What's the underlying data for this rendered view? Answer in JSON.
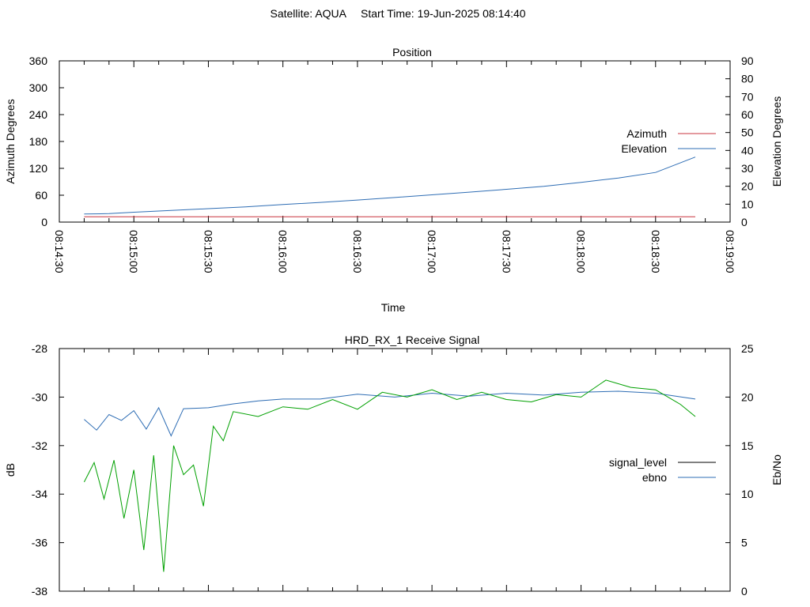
{
  "page": {
    "satellite": "Satellite: AQUA",
    "start_time": "Start Time: 19-Jun-2025 08:14:40"
  },
  "colors": {
    "azimuth": "#c8343f",
    "elevation": "#2e6db4",
    "signal_level": "#000000",
    "ebno": "#2e6db4",
    "signal_trace": "#00a000",
    "axis": "#000000"
  },
  "chart_data": [
    {
      "type": "line",
      "title": "Position",
      "xlabel": "Time",
      "ylabel": "Azimuth Degrees",
      "y2label": "Elevation Degrees",
      "xlim": [
        "08:14:30",
        "08:19:00"
      ],
      "ylim": [
        0,
        360
      ],
      "y2lim": [
        0,
        90
      ],
      "xticks": [
        "08:14:30",
        "08:15:00",
        "08:15:30",
        "08:16:00",
        "08:16:30",
        "08:17:00",
        "08:17:30",
        "08:18:00",
        "08:18:30",
        "08:19:00"
      ],
      "yticks": [
        "0",
        "60",
        "120",
        "180",
        "240",
        "300",
        "360"
      ],
      "y2ticks": [
        "0",
        "10",
        "20",
        "30",
        "40",
        "50",
        "60",
        "70",
        "80",
        "90"
      ],
      "legend_position": "right",
      "series": [
        {
          "name": "Azimuth",
          "axis": "y",
          "x": [
            "08:14:40",
            "08:15:00",
            "08:15:30",
            "08:16:00",
            "08:16:30",
            "08:17:00",
            "08:17:30",
            "08:18:00",
            "08:18:30",
            "08:18:46"
          ],
          "values": [
            12,
            12,
            12,
            12,
            12,
            12,
            12,
            12,
            12,
            12
          ]
        },
        {
          "name": "Elevation",
          "axis": "y2",
          "x": [
            "08:14:40",
            "08:14:50",
            "08:15:00",
            "08:15:15",
            "08:15:30",
            "08:15:45",
            "08:16:00",
            "08:16:15",
            "08:16:30",
            "08:16:45",
            "08:17:00",
            "08:17:15",
            "08:17:30",
            "08:17:45",
            "08:18:00",
            "08:18:15",
            "08:18:30",
            "08:18:46"
          ],
          "values": [
            4.5,
            4.7,
            5.5,
            6.5,
            7.5,
            8.5,
            9.8,
            11.0,
            12.3,
            13.7,
            15.2,
            16.7,
            18.3,
            20.0,
            22.2,
            24.6,
            27.7,
            36.3
          ]
        }
      ]
    },
    {
      "type": "line",
      "title": "HRD_RX_1 Receive Signal",
      "xlabel": "",
      "ylabel": "dB",
      "y2label": "Eb/No",
      "xlim": [
        "08:14:30",
        "08:19:00"
      ],
      "ylim": [
        -38,
        -28
      ],
      "y2lim": [
        0,
        25
      ],
      "yticks": [
        "-38",
        "-36",
        "-34",
        "-32",
        "-30",
        "-28"
      ],
      "y2ticks": [
        "0",
        "5",
        "10",
        "15",
        "20",
        "25"
      ],
      "legend_position": "right",
      "legend": [
        "signal_level",
        "ebno"
      ],
      "series": [
        {
          "name": "ebno",
          "axis": "y2",
          "x": [
            "08:14:40",
            "08:14:45",
            "08:14:50",
            "08:14:55",
            "08:15:00",
            "08:15:05",
            "08:15:10",
            "08:15:15",
            "08:15:20",
            "08:15:30",
            "08:15:40",
            "08:15:50",
            "08:16:00",
            "08:16:15",
            "08:16:30",
            "08:16:45",
            "08:17:00",
            "08:17:15",
            "08:17:30",
            "08:17:45",
            "08:18:00",
            "08:18:15",
            "08:18:30",
            "08:18:46"
          ],
          "values": [
            17.7,
            16.6,
            18.2,
            17.6,
            18.6,
            16.7,
            18.9,
            16.0,
            18.8,
            18.9,
            19.3,
            19.6,
            19.8,
            19.8,
            20.3,
            20.0,
            20.4,
            20.1,
            20.4,
            20.2,
            20.5,
            20.6,
            20.4,
            19.8
          ]
        },
        {
          "name": "",
          "axis": "y",
          "x": [
            "08:14:40",
            "08:14:44",
            "08:14:48",
            "08:14:52",
            "08:14:56",
            "08:15:00",
            "08:15:04",
            "08:15:08",
            "08:15:12",
            "08:15:16",
            "08:15:20",
            "08:15:24",
            "08:15:28",
            "08:15:32",
            "08:15:36",
            "08:15:40",
            "08:15:50",
            "08:16:00",
            "08:16:10",
            "08:16:20",
            "08:16:30",
            "08:16:40",
            "08:16:50",
            "08:17:00",
            "08:17:10",
            "08:17:20",
            "08:17:30",
            "08:17:40",
            "08:17:50",
            "08:18:00",
            "08:18:10",
            "08:18:20",
            "08:18:30",
            "08:18:40",
            "08:18:46"
          ],
          "values": [
            -33.5,
            -32.7,
            -34.2,
            -32.6,
            -35.0,
            -33.0,
            -36.3,
            -32.4,
            -37.2,
            -32.0,
            -33.2,
            -32.8,
            -34.5,
            -31.2,
            -31.8,
            -30.6,
            -30.8,
            -30.4,
            -30.5,
            -30.1,
            -30.5,
            -29.8,
            -30.0,
            -29.7,
            -30.1,
            -29.8,
            -30.1,
            -30.2,
            -29.9,
            -30.0,
            -29.3,
            -29.6,
            -29.7,
            -30.3,
            -30.8
          ]
        }
      ]
    }
  ]
}
